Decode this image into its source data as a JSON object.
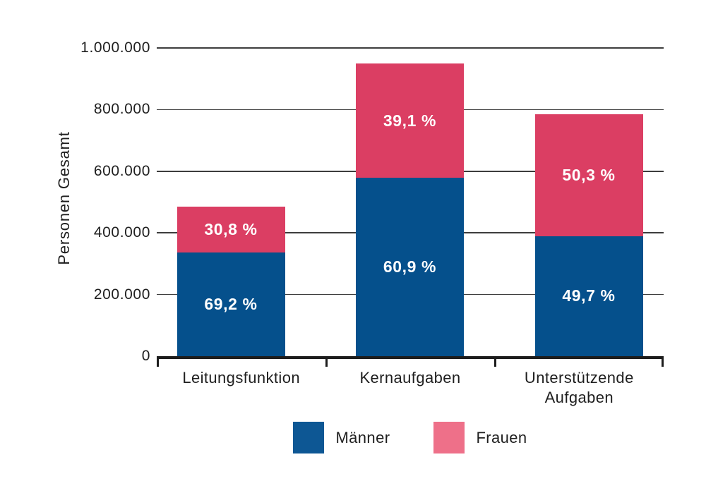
{
  "chart_data": {
    "type": "bar",
    "stacked": true,
    "title": "",
    "xlabel": "",
    "ylabel": "Personen Gesamt",
    "ylim": [
      0,
      1000000
    ],
    "grid": true,
    "legend_position": "bottom",
    "yticks": [
      {
        "value": 0,
        "label": "0"
      },
      {
        "value": 200000,
        "label": "200.000"
      },
      {
        "value": 400000,
        "label": "400.000"
      },
      {
        "value": 600000,
        "label": "600.000"
      },
      {
        "value": 800000,
        "label": "800.000"
      },
      {
        "value": 1000000,
        "label": "1.000.000"
      }
    ],
    "categories": [
      "Leitungsfunktion",
      "Kernaufgaben",
      "Unterstützende Aufgaben"
    ],
    "totals_persons_estimated": [
      485000,
      950000,
      785000
    ],
    "series": [
      {
        "name": "Männer",
        "color": "#05508C",
        "legend_color": "#0D5794",
        "percent": [
          69.2,
          60.9,
          49.7
        ],
        "percent_labels": [
          "69,2 %",
          "60,9 %",
          "49,7 %"
        ]
      },
      {
        "name": "Frauen",
        "color": "#DB3E63",
        "legend_color": "#EE7089",
        "percent": [
          30.8,
          39.1,
          50.3
        ],
        "percent_labels": [
          "30,8 %",
          "39,1 %",
          "50,3 %"
        ]
      }
    ]
  },
  "colors": {
    "background": "#FFFFFF",
    "gridline": "#3D3D3D",
    "axis": "#1D1D1D",
    "text": "#1F1F1F",
    "bar_label_text": "#FFFFFF"
  }
}
